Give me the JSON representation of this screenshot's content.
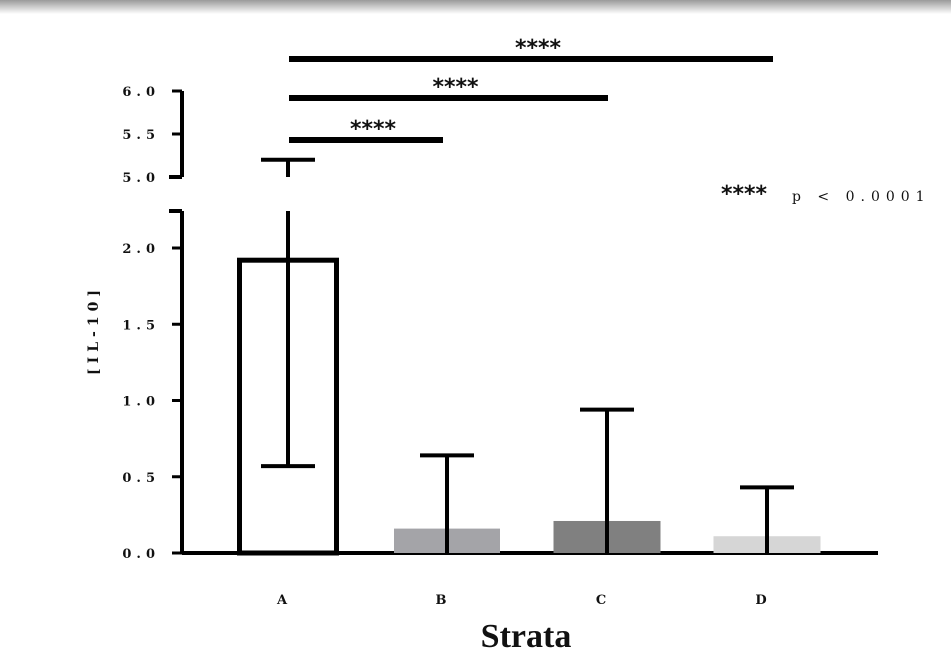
{
  "chart_data": {
    "type": "bar",
    "categories": [
      "A",
      "B",
      "C",
      "D"
    ],
    "values": [
      1.92,
      0.16,
      0.21,
      0.11
    ],
    "error_upper": [
      5.2,
      0.64,
      0.94,
      0.43
    ],
    "error_lower": [
      0.57,
      null,
      null,
      null
    ],
    "colors": [
      "#ffffff",
      "#a4a4a8",
      "#808080",
      "#d6d6d6"
    ],
    "xlabel": "Strata",
    "ylabel": "[IL-10]",
    "y_axis_broken": true,
    "y_lower_segment": {
      "range": [
        0,
        2.2
      ],
      "ticks": [
        "0.0",
        "0.5",
        "1.0",
        "1.5",
        "2.0"
      ]
    },
    "y_upper_segment": {
      "range": [
        5.0,
        6.0
      ],
      "ticks": [
        "5.0",
        "5.5",
        "6.0"
      ]
    },
    "significance": [
      {
        "from": "A",
        "to": "B",
        "label": "****"
      },
      {
        "from": "A",
        "to": "C",
        "label": "****"
      },
      {
        "from": "A",
        "to": "D",
        "label": "****"
      }
    ],
    "annotation": {
      "stars": "****",
      "text": "p < 0.0001"
    },
    "grid": false,
    "legend": "none"
  }
}
